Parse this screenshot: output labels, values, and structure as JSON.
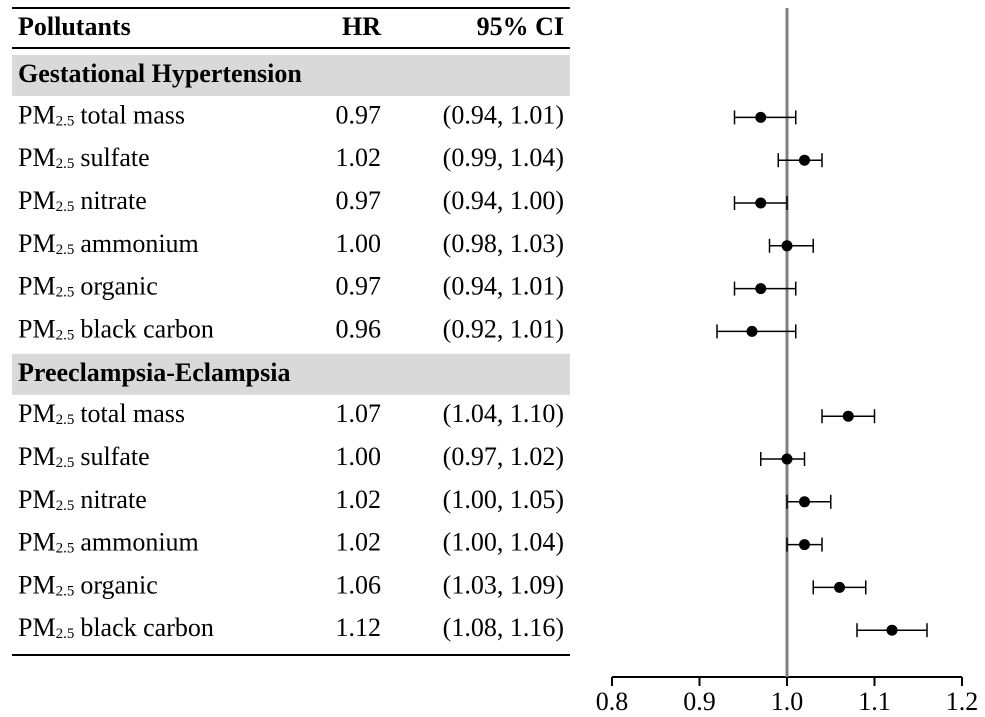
{
  "chart_data": {
    "type": "forest",
    "headers": [
      "Pollutants",
      "HR",
      "95% CI"
    ],
    "pm": "PM",
    "pm_sub": "2.5",
    "groups": [
      {
        "name": "Gestational Hypertension",
        "categories": [
          "total mass",
          "sulfate",
          "nitrate",
          "ammonium",
          "organic",
          "black carbon"
        ],
        "values": [
          0.97,
          1.02,
          0.97,
          1.0,
          0.97,
          0.96
        ],
        "value_labels": [
          "0.97",
          "1.02",
          "0.97",
          "1.00",
          "0.97",
          "0.96"
        ],
        "lower": [
          0.94,
          0.99,
          0.94,
          0.98,
          0.94,
          0.92
        ],
        "upper": [
          1.01,
          1.04,
          1.0,
          1.03,
          1.01,
          1.01
        ],
        "ci_labels": [
          "(0.94, 1.01)",
          "(0.99, 1.04)",
          "(0.94, 1.00)",
          "(0.98, 1.03)",
          "(0.94, 1.01)",
          "(0.92, 1.01)"
        ]
      },
      {
        "name": "Preeclampsia-Eclampsia",
        "categories": [
          "total mass",
          "sulfate",
          "nitrate",
          "ammonium",
          "organic",
          "black carbon"
        ],
        "values": [
          1.07,
          1.0,
          1.02,
          1.02,
          1.06,
          1.12
        ],
        "value_labels": [
          "1.07",
          "1.00",
          "1.02",
          "1.02",
          "1.06",
          "1.12"
        ],
        "lower": [
          1.04,
          0.97,
          1.0,
          1.0,
          1.03,
          1.08
        ],
        "upper": [
          1.1,
          1.02,
          1.05,
          1.04,
          1.09,
          1.16
        ],
        "ci_labels": [
          "(1.04, 1.10)",
          "(0.97, 1.02)",
          "(1.00, 1.05)",
          "(1.00, 1.04)",
          "(1.03, 1.09)",
          "(1.08, 1.16)"
        ]
      }
    ],
    "xlim": [
      0.8,
      1.2
    ],
    "xticks": [
      {
        "value": 0.8,
        "label": "0.8"
      },
      {
        "value": 0.9,
        "label": "0.9"
      },
      {
        "value": 1.0,
        "label": "1.0"
      },
      {
        "value": 1.1,
        "label": "1.1"
      },
      {
        "value": 1.2,
        "label": "1.2"
      }
    ],
    "refline": 1,
    "color": "#000000"
  }
}
